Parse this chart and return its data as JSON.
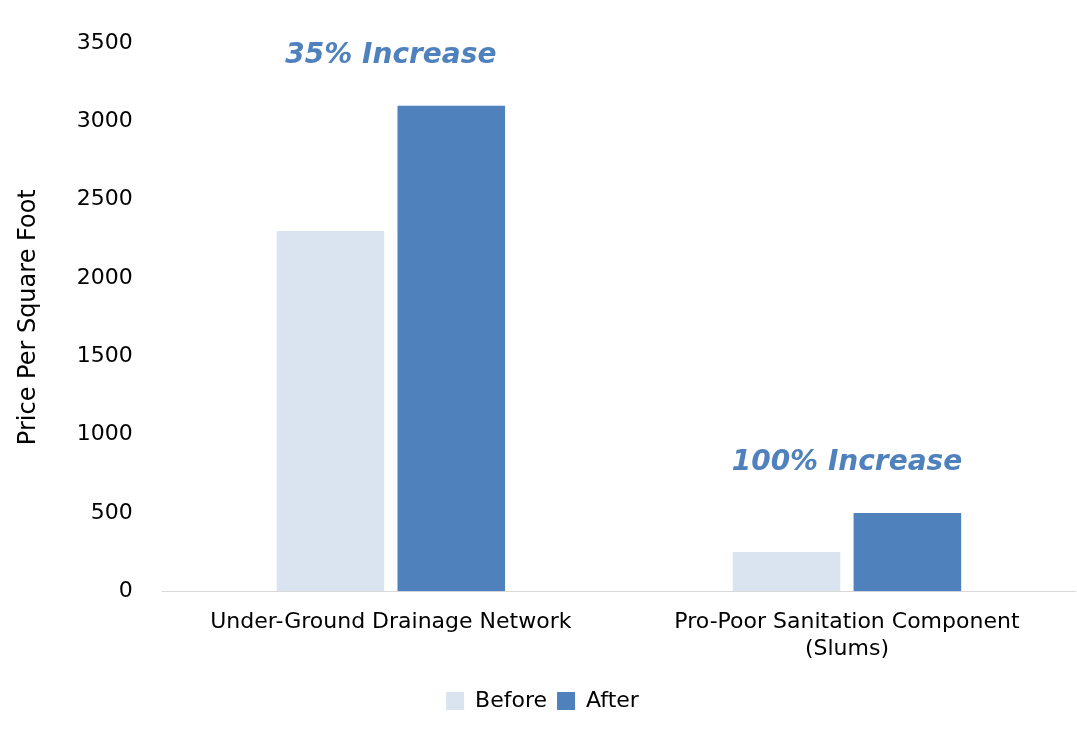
{
  "chart_data": {
    "type": "bar",
    "ylabel": "Price Per Square Foot",
    "categories": [
      "Under-Ground Drainage Network",
      "Pro-Poor Sanitation Component (Slums)"
    ],
    "series": [
      {
        "name": "Before",
        "color": "#dae3f0",
        "values": [
          2300,
          250
        ]
      },
      {
        "name": "After",
        "color": "#4f81bd",
        "values": [
          3100,
          500
        ]
      }
    ],
    "ylim": [
      0,
      3500
    ],
    "yticks": [
      0,
      500,
      1000,
      1500,
      2000,
      2500,
      3000,
      3500
    ],
    "grid": false,
    "legend": "bottom",
    "annotations": [
      "35% Increase",
      "100% Increase"
    ]
  }
}
